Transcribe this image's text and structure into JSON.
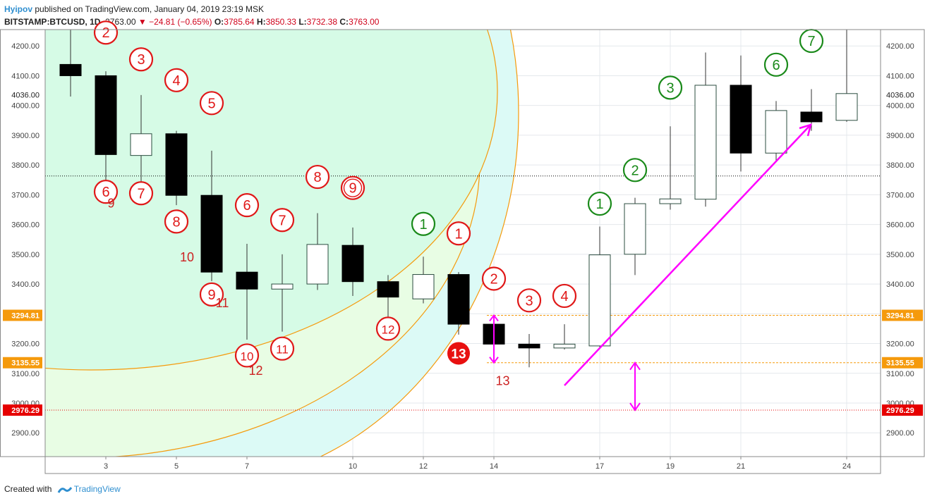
{
  "header": {
    "author": "Hyipov",
    "published": "published on TradingView.com, January 04, 2019 23:19 MSK",
    "symbol": "BITSTAMP:BTCUSD, 1D",
    "last": "3763.00",
    "change": "−24.81 (−0.65%)",
    "o_label": "O:",
    "o_value": "3785.64",
    "h_label": "H:",
    "h_value": "3850.33",
    "l_label": "L:",
    "l_value": "3732.38",
    "c_label": "C:",
    "c_value": "3763.00"
  },
  "footer": {
    "created_with": "Created with",
    "brand": "TradingView"
  },
  "colors": {
    "grid": "#e4e8ec",
    "up_fill": "#ffffff",
    "down_fill": "#000000",
    "red_marker": "#e01818",
    "green_marker": "#1a8a1a",
    "magenta": "#ff00ff",
    "orange_line": "#f59a0c",
    "red_line": "#e60000",
    "ellipse_fill_1": "#d6fbe6",
    "ellipse_fill_2": "#e8fde4",
    "ellipse_fill_3": "#dcfaf6"
  },
  "chart_data": {
    "type": "candlestick",
    "ylim": [
      2820,
      4255
    ],
    "y_ticks": [
      "2900.00",
      "3000.00",
      "3100.00",
      "3200.00",
      "3300.00",
      "3400.00",
      "3500.00",
      "3600.00",
      "3700.00",
      "3800.00",
      "3900.00",
      "4000.00",
      "4100.00",
      "4200.00"
    ],
    "x_ticks": [
      {
        "day": 3,
        "label": "3"
      },
      {
        "day": 5,
        "label": "5"
      },
      {
        "day": 7,
        "label": "7"
      },
      {
        "day": 10,
        "label": "10"
      },
      {
        "day": 12,
        "label": "12"
      },
      {
        "day": 14,
        "label": "14"
      },
      {
        "day": 17,
        "label": "17"
      },
      {
        "day": 19,
        "label": "19"
      },
      {
        "day": 21,
        "label": "21"
      },
      {
        "day": 24,
        "label": "24"
      }
    ],
    "candles": [
      {
        "day": 2,
        "o": 4138,
        "h": 4280,
        "l": 4030,
        "c": 4100
      },
      {
        "day": 3,
        "o": 4100,
        "h": 4115,
        "l": 3750,
        "c": 3835
      },
      {
        "day": 4,
        "o": 3832,
        "h": 4035,
        "l": 3735,
        "c": 3905
      },
      {
        "day": 5,
        "o": 3905,
        "h": 3915,
        "l": 3665,
        "c": 3698
      },
      {
        "day": 6,
        "o": 3698,
        "h": 3848,
        "l": 3410,
        "c": 3440
      },
      {
        "day": 7,
        "o": 3440,
        "h": 3535,
        "l": 3213,
        "c": 3383
      },
      {
        "day": 8,
        "o": 3383,
        "h": 3500,
        "l": 3240,
        "c": 3400
      },
      {
        "day": 9,
        "o": 3400,
        "h": 3638,
        "l": 3380,
        "c": 3533
      },
      {
        "day": 10,
        "o": 3530,
        "h": 3590,
        "l": 3360,
        "c": 3408
      },
      {
        "day": 11,
        "o": 3408,
        "h": 3430,
        "l": 3290,
        "c": 3356
      },
      {
        "day": 12,
        "o": 3350,
        "h": 3492,
        "l": 3335,
        "c": 3432
      },
      {
        "day": 13,
        "o": 3432,
        "h": 3440,
        "l": 3230,
        "c": 3265
      },
      {
        "day": 14,
        "o": 3265,
        "h": 3270,
        "l": 3190,
        "c": 3198
      },
      {
        "day": 15,
        "o": 3198,
        "h": 3232,
        "l": 3120,
        "c": 3185
      },
      {
        "day": 16,
        "o": 3185,
        "h": 3265,
        "l": 3180,
        "c": 3198
      },
      {
        "day": 17,
        "o": 3192,
        "h": 3593,
        "l": 3188,
        "c": 3498
      },
      {
        "day": 18,
        "o": 3500,
        "h": 3690,
        "l": 3430,
        "c": 3670
      },
      {
        "day": 19,
        "o": 3670,
        "h": 3930,
        "l": 3650,
        "c": 3686
      },
      {
        "day": 20,
        "o": 3685,
        "h": 4178,
        "l": 3660,
        "c": 4068
      },
      {
        "day": 21,
        "o": 4068,
        "h": 4168,
        "l": 3778,
        "c": 3840
      },
      {
        "day": 22,
        "o": 3840,
        "h": 4015,
        "l": 3815,
        "c": 3983
      },
      {
        "day": 23,
        "o": 3978,
        "h": 4055,
        "l": 3915,
        "c": 3945
      },
      {
        "day": 24,
        "o": 3950,
        "h": 4260,
        "l": 3945,
        "c": 4040
      }
    ],
    "hlines": [
      {
        "price": 3763.0,
        "label": "",
        "style": "dotted-black"
      },
      {
        "price": 3294.81,
        "label": "3294.81",
        "style": "dashed-orange"
      },
      {
        "price": 3135.55,
        "label": "3135.55",
        "style": "dashed-orange"
      },
      {
        "price": 2976.29,
        "label": "2976.29",
        "style": "dotted-red"
      }
    ],
    "axis_extra_label": "4036.00",
    "markers_red": [
      {
        "label": "2",
        "day": 3,
        "price": 4245
      },
      {
        "label": "3",
        "day": 4,
        "price": 4155
      },
      {
        "label": "4",
        "day": 5,
        "price": 4085
      },
      {
        "label": "5",
        "day": 6,
        "price": 4008
      },
      {
        "label": "6",
        "day": 3,
        "price": 3710
      },
      {
        "label": "7",
        "day": 4,
        "price": 3705
      },
      {
        "label": "8",
        "day": 5,
        "price": 3610
      },
      {
        "label": "6",
        "day": 7,
        "price": 3665
      },
      {
        "label": "7",
        "day": 8,
        "price": 3615
      },
      {
        "label": "8",
        "day": 9,
        "price": 3760
      },
      {
        "label": "9",
        "day": 10,
        "price": 3723,
        "double": true
      },
      {
        "label": "9",
        "day": 6,
        "price": 3365
      },
      {
        "label": "10",
        "day": 7,
        "price": 3160
      },
      {
        "label": "11",
        "day": 8,
        "price": 3183
      },
      {
        "label": "12",
        "day": 11,
        "price": 3250
      },
      {
        "label": "1",
        "day": 13,
        "price": 3570
      },
      {
        "label": "2",
        "day": 14,
        "price": 3418
      },
      {
        "label": "3",
        "day": 15,
        "price": 3345
      },
      {
        "label": "4",
        "day": 16,
        "price": 3360
      },
      {
        "label": "13",
        "day": 13,
        "price": 3167,
        "filled": true
      }
    ],
    "markers_green": [
      {
        "label": "1",
        "day": 12,
        "price": 3602
      },
      {
        "label": "1",
        "day": 17,
        "price": 3670
      },
      {
        "label": "2",
        "day": 18,
        "price": 3783
      },
      {
        "label": "3",
        "day": 19,
        "price": 4060
      },
      {
        "label": "6",
        "day": 22,
        "price": 4137
      },
      {
        "label": "7",
        "day": 23,
        "price": 4217
      }
    ],
    "plain_labels": [
      {
        "text": "9",
        "day": 3.15,
        "price": 3657
      },
      {
        "text": "10",
        "day": 5.3,
        "price": 3476
      },
      {
        "text": "11",
        "day": 6.3,
        "price": 3322
      },
      {
        "text": "12",
        "day": 7.25,
        "price": 3095
      },
      {
        "text": "13",
        "day": 14.25,
        "price": 3060
      }
    ]
  }
}
